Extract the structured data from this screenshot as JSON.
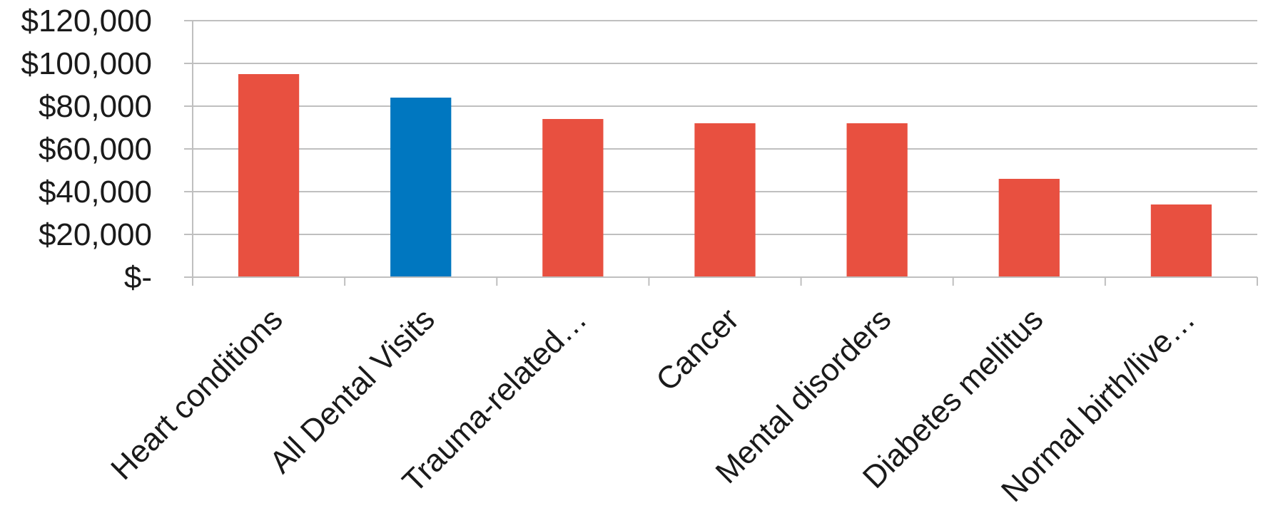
{
  "chart_data": {
    "type": "bar",
    "title": "",
    "xlabel": "",
    "ylabel": "",
    "categories": [
      "Heart conditions",
      "All Dental Visits",
      "Trauma-related…",
      "Cancer",
      "Mental disorders",
      "Diabetes mellitus",
      "Normal birth/live…"
    ],
    "values": [
      95000,
      84000,
      74000,
      72000,
      72000,
      46000,
      34000
    ],
    "colors": [
      "#e85040",
      "#0077c0",
      "#e85040",
      "#e85040",
      "#e85040",
      "#e85040",
      "#e85040"
    ],
    "ylim": [
      0,
      120000
    ],
    "yticks": [
      0,
      20000,
      40000,
      60000,
      80000,
      100000,
      120000
    ],
    "ytick_labels": [
      "$-",
      "$20,000",
      "$40,000",
      "$60,000",
      "$80,000",
      "$100,000",
      "$120,000"
    ],
    "grid": true,
    "legend": "none",
    "colors_meta": {
      "grid": "#bfbfbf",
      "axis": "#bfbfbf",
      "text": "#1a1a1a"
    }
  }
}
